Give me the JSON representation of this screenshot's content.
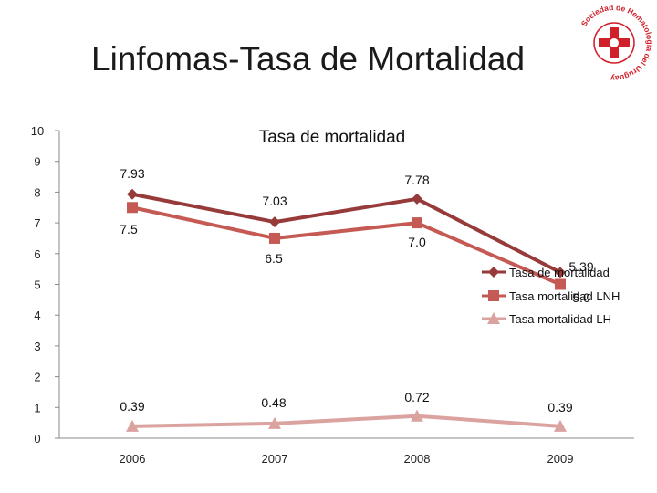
{
  "slide": {
    "title": "Linfomas-Tasa de Mortalidad"
  },
  "logo": {
    "text": "Sociedad de Hematología del Uruguay",
    "icon": "hematology-society-seal-icon",
    "color": "#d0202a"
  },
  "chart_data": {
    "type": "line",
    "title": "Tasa de mortalidad",
    "categories": [
      "2006",
      "2007",
      "2008",
      "2009"
    ],
    "ylim": [
      0,
      10
    ],
    "yticks": [
      "0",
      "1",
      "2",
      "3",
      "4",
      "5",
      "6",
      "7",
      "8",
      "9",
      "10"
    ],
    "grid": false,
    "legend_position": "right",
    "series": [
      {
        "name": "Tasa de mortalidad",
        "values": [
          7.93,
          7.03,
          7.78,
          5.39
        ],
        "labels": [
          "7.93",
          "7.03",
          "7.78",
          "5.39"
        ],
        "color": "#963a3a",
        "marker": "diamond"
      },
      {
        "name": "Tasa mortalidad LNH",
        "values": [
          7.5,
          6.5,
          7.0,
          5.0
        ],
        "labels": [
          "7.5",
          "6.5",
          "7.0",
          "5.0"
        ],
        "color": "#c55a55",
        "marker": "square"
      },
      {
        "name": "Tasa mortalidad LH",
        "values": [
          0.39,
          0.48,
          0.72,
          0.39
        ],
        "labels": [
          "0.39",
          "0.48",
          "0.72",
          "0.39"
        ],
        "color": "#dba3a0",
        "marker": "triangle"
      }
    ]
  }
}
